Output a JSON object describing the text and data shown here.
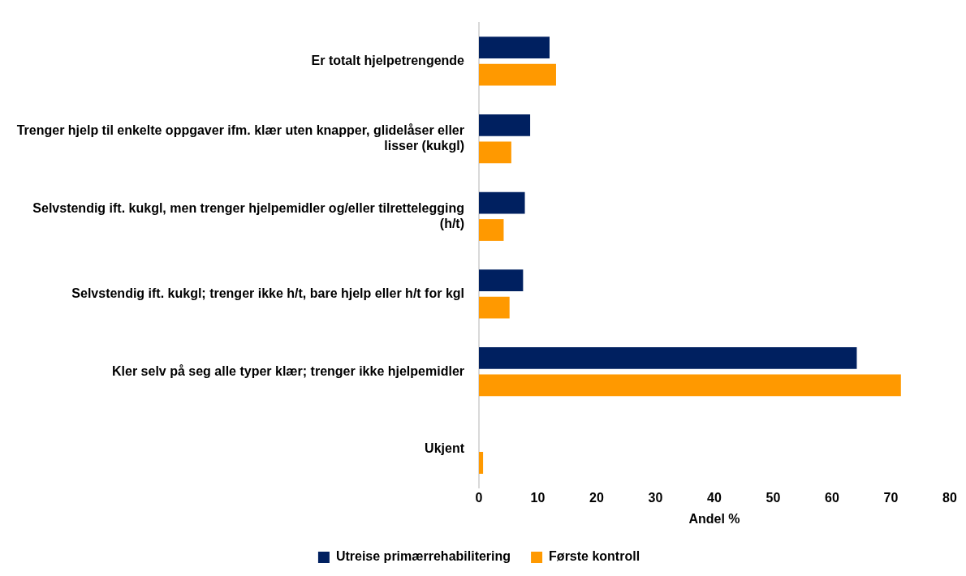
{
  "chart_data": {
    "type": "bar",
    "orientation": "horizontal",
    "xlabel": "Andel %",
    "categories": [
      "Er totalt hjelpetrengende",
      "Trenger hjelp til enkelte oppgaver ifm. klær uten knapper, glidelåser eller lisser (kukgl)",
      "Selvstendig ift. kukgl, men trenger hjelpemidler og/eller tilrettelegging (h/t)",
      "Selvstendig ift. kukgl; trenger ikke h/t, bare hjelp eller h/t for kgl",
      "Kler selv på seg alle typer klær; trenger ikke hjelpemidler",
      "Ukjent"
    ],
    "series": [
      {
        "name": "Utreise primærrehabilitering",
        "color": "#002060",
        "values": [
          12.0,
          8.7,
          7.8,
          7.5,
          64.2,
          null
        ]
      },
      {
        "name": "Første kontroll",
        "color": "#ff9900",
        "values": [
          13.1,
          5.5,
          4.2,
          5.2,
          71.7,
          0.7
        ]
      }
    ],
    "xlim": [
      0,
      80
    ],
    "xticks": [
      0,
      10,
      20,
      30,
      40,
      50,
      60,
      70,
      80
    ],
    "grid": false,
    "legend": "bottom"
  }
}
